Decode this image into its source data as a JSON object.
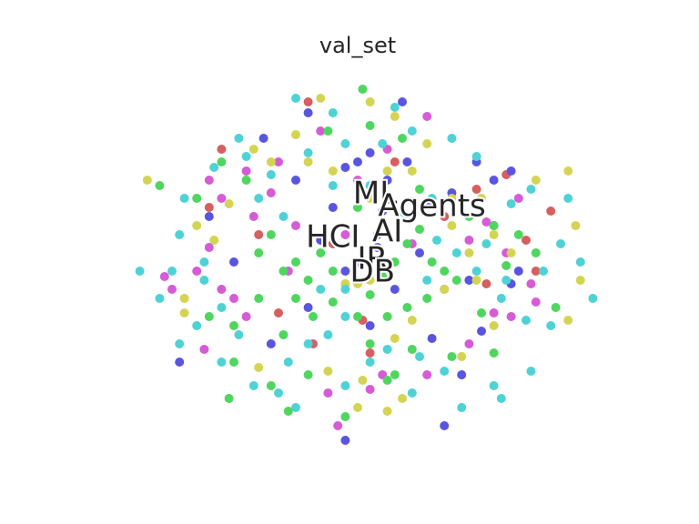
{
  "chart_data": {
    "type": "scatter",
    "title": "val_set",
    "xlabel": "",
    "ylabel": "",
    "grid": false,
    "axes_visible": false,
    "xlim": [
      -1.0,
      1.0
    ],
    "ylim": [
      -1.0,
      1.0
    ],
    "series": [
      {
        "name": "",
        "color": "#d65f5f",
        "points": [
          [
            -0.55,
            0.62
          ],
          [
            -0.4,
            0.15
          ],
          [
            -0.2,
            0.88
          ],
          [
            -0.1,
            0.1
          ],
          [
            0.02,
            -0.32
          ],
          [
            -0.18,
            -0.45
          ],
          [
            0.15,
            0.55
          ],
          [
            0.35,
            0.25
          ],
          [
            0.48,
            0.4
          ],
          [
            0.6,
            0.48
          ],
          [
            0.72,
            -0.05
          ],
          [
            0.52,
            -0.12
          ],
          [
            -0.32,
            -0.28
          ],
          [
            0.05,
            -0.5
          ],
          [
            -0.6,
            0.3
          ],
          [
            0.78,
            0.28
          ],
          [
            0.68,
            0.12
          ]
        ]
      },
      {
        "name": "",
        "color": "#5a55e0",
        "points": [
          [
            -0.38,
            0.68
          ],
          [
            -0.2,
            0.82
          ],
          [
            -0.05,
            0.52
          ],
          [
            0.0,
            0.55
          ],
          [
            0.05,
            0.6
          ],
          [
            0.12,
            0.45
          ],
          [
            0.2,
            0.55
          ],
          [
            -0.25,
            0.45
          ],
          [
            -0.1,
            0.3
          ],
          [
            0.1,
            0.28
          ],
          [
            0.28,
            0.32
          ],
          [
            0.38,
            0.38
          ],
          [
            0.55,
            0.45
          ],
          [
            0.62,
            0.5
          ],
          [
            0.25,
            0.05
          ],
          [
            0.15,
            -0.15
          ],
          [
            -0.05,
            -0.05
          ],
          [
            0.08,
            0.15
          ],
          [
            -0.15,
            0.12
          ],
          [
            0.45,
            -0.1
          ],
          [
            0.62,
            -0.12
          ],
          [
            -0.5,
            0.0
          ],
          [
            -0.2,
            -0.25
          ],
          [
            0.05,
            -0.35
          ],
          [
            0.3,
            -0.42
          ],
          [
            0.5,
            -0.38
          ],
          [
            -0.35,
            -0.45
          ],
          [
            0.42,
            -0.62
          ],
          [
            0.35,
            -0.9
          ],
          [
            -0.05,
            -0.98
          ],
          [
            0.18,
            0.88
          ],
          [
            -0.6,
            0.25
          ],
          [
            -0.72,
            -0.55
          ],
          [
            0.65,
            -0.05
          ],
          [
            0.55,
            0.2
          ],
          [
            0.0,
            0.0
          ],
          [
            0.08,
            0.08
          ],
          [
            0.48,
            0.55
          ]
        ]
      },
      {
        "name": "",
        "color": "#d65bd6",
        "points": [
          [
            -0.6,
            0.45
          ],
          [
            -0.55,
            0.35
          ],
          [
            -0.45,
            0.5
          ],
          [
            -0.35,
            0.38
          ],
          [
            -0.25,
            0.2
          ],
          [
            -0.6,
            0.08
          ],
          [
            -0.65,
            -0.05
          ],
          [
            -0.55,
            -0.15
          ],
          [
            -0.45,
            -0.3
          ],
          [
            -0.62,
            -0.48
          ],
          [
            -0.28,
            -0.05
          ],
          [
            0.0,
            0.45
          ],
          [
            0.12,
            0.62
          ],
          [
            0.28,
            0.8
          ],
          [
            0.45,
            0.12
          ],
          [
            0.52,
            0.22
          ],
          [
            0.6,
            0.05
          ],
          [
            0.7,
            -0.12
          ],
          [
            0.55,
            -0.28
          ],
          [
            0.62,
            -0.3
          ],
          [
            0.28,
            -0.62
          ],
          [
            0.05,
            -0.7
          ],
          [
            -0.12,
            -0.72
          ],
          [
            -0.08,
            -0.9
          ],
          [
            -0.15,
            0.72
          ],
          [
            -0.32,
            0.55
          ],
          [
            -0.42,
            0.25
          ],
          [
            0.22,
            0.1
          ],
          [
            0.35,
            -0.15
          ],
          [
            -0.05,
            0.15
          ],
          [
            0.45,
            -0.45
          ],
          [
            -0.75,
            -0.15
          ],
          [
            -0.78,
            -0.08
          ],
          [
            -0.5,
            -0.2
          ],
          [
            0.72,
            -0.22
          ],
          [
            0.65,
            0.35
          ],
          [
            0.1,
            -0.62
          ]
        ]
      },
      {
        "name": "",
        "color": "#4fd65f",
        "points": [
          [
            -0.8,
            0.42
          ],
          [
            -0.55,
            0.55
          ],
          [
            -0.45,
            0.45
          ],
          [
            -0.4,
            0.05
          ],
          [
            -0.35,
            0.15
          ],
          [
            -0.3,
            -0.05
          ],
          [
            -0.25,
            0.0
          ],
          [
            -0.2,
            -0.1
          ],
          [
            -0.15,
            0.05
          ],
          [
            -0.1,
            -0.05
          ],
          [
            -0.05,
            -0.12
          ],
          [
            0.05,
            -0.18
          ],
          [
            0.1,
            -0.08
          ],
          [
            0.15,
            0.0
          ],
          [
            0.2,
            0.1
          ],
          [
            0.25,
            0.18
          ],
          [
            0.3,
            0.0
          ],
          [
            0.35,
            -0.05
          ],
          [
            0.4,
            -0.1
          ],
          [
            -0.25,
            -0.2
          ],
          [
            -0.18,
            -0.3
          ],
          [
            -0.1,
            -0.22
          ],
          [
            0.0,
            -0.3
          ],
          [
            0.12,
            -0.3
          ],
          [
            0.2,
            -0.25
          ],
          [
            0.28,
            -0.2
          ],
          [
            -0.4,
            -0.2
          ],
          [
            -0.5,
            -0.35
          ],
          [
            -0.3,
            -0.4
          ],
          [
            0.05,
            -0.45
          ],
          [
            0.22,
            -0.48
          ],
          [
            0.38,
            -0.52
          ],
          [
            0.15,
            -0.62
          ],
          [
            -0.2,
            -0.62
          ],
          [
            -0.35,
            -0.68
          ],
          [
            -0.5,
            -0.55
          ],
          [
            -0.52,
            -0.75
          ],
          [
            -0.28,
            -0.82
          ],
          [
            -0.05,
            -0.85
          ],
          [
            0.12,
            -0.65
          ],
          [
            0.02,
            0.95
          ],
          [
            0.05,
            0.75
          ],
          [
            0.18,
            0.68
          ],
          [
            -0.12,
            0.72
          ],
          [
            0.55,
            0.2
          ],
          [
            0.6,
            -0.02
          ],
          [
            0.5,
            -0.28
          ],
          [
            0.65,
            0.15
          ],
          [
            0.72,
            0.05
          ],
          [
            0.55,
            -0.5
          ],
          [
            0.8,
            -0.25
          ],
          [
            -0.65,
            0.35
          ],
          [
            0.25,
            0.4
          ],
          [
            0.0,
            0.3
          ],
          [
            -0.6,
            -0.3
          ],
          [
            0.45,
            0.25
          ]
        ]
      },
      {
        "name": "",
        "color": "#d4d453",
        "points": [
          [
            -0.42,
            0.62
          ],
          [
            -0.25,
            0.7
          ],
          [
            -0.15,
            0.9
          ],
          [
            0.05,
            0.88
          ],
          [
            0.15,
            0.8
          ],
          [
            0.28,
            0.65
          ],
          [
            0.22,
            0.5
          ],
          [
            0.12,
            0.5
          ],
          [
            0.05,
            0.35
          ],
          [
            -0.1,
            0.5
          ],
          [
            -0.2,
            0.55
          ],
          [
            -0.35,
            0.55
          ],
          [
            -0.52,
            0.32
          ],
          [
            -0.58,
            0.12
          ],
          [
            -0.7,
            -0.2
          ],
          [
            -0.65,
            0.2
          ],
          [
            0.38,
            0.35
          ],
          [
            0.5,
            0.35
          ],
          [
            0.55,
            0.15
          ],
          [
            0.62,
            0.05
          ],
          [
            0.48,
            -0.1
          ],
          [
            0.35,
            -0.15
          ],
          [
            0.22,
            -0.32
          ],
          [
            0.15,
            -0.42
          ],
          [
            0.05,
            -0.1
          ],
          [
            -0.05,
            -0.12
          ],
          [
            0.02,
            -0.65
          ],
          [
            -0.12,
            -0.6
          ],
          [
            0.0,
            -0.8
          ],
          [
            0.12,
            -0.82
          ],
          [
            0.18,
            -0.75
          ],
          [
            0.42,
            -0.52
          ],
          [
            0.55,
            -0.35
          ],
          [
            0.72,
            0.45
          ],
          [
            0.85,
            0.5
          ],
          [
            0.88,
            0.2
          ],
          [
            0.9,
            -0.1
          ],
          [
            0.85,
            -0.32
          ],
          [
            -0.85,
            0.45
          ],
          [
            -0.7,
            -0.28
          ],
          [
            -0.4,
            -0.58
          ],
          [
            0.0,
            -0.12
          ],
          [
            0.38,
            0.2
          ],
          [
            0.45,
            0.05
          ]
        ]
      },
      {
        "name": "",
        "color": "#4fd2d6",
        "points": [
          [
            -0.25,
            0.9
          ],
          [
            -0.1,
            0.82
          ],
          [
            0.15,
            0.85
          ],
          [
            0.22,
            0.72
          ],
          [
            0.38,
            0.68
          ],
          [
            -0.48,
            0.68
          ],
          [
            -0.45,
            0.58
          ],
          [
            -0.58,
            0.52
          ],
          [
            -0.7,
            0.35
          ],
          [
            -0.72,
            0.15
          ],
          [
            -0.75,
            -0.05
          ],
          [
            -0.88,
            -0.05
          ],
          [
            -0.62,
            -0.1
          ],
          [
            -0.55,
            -0.25
          ],
          [
            -0.48,
            -0.4
          ],
          [
            -0.65,
            -0.35
          ],
          [
            -0.72,
            -0.45
          ],
          [
            -0.4,
            0.35
          ],
          [
            -0.3,
            0.25
          ],
          [
            -0.1,
            0.42
          ],
          [
            0.05,
            0.42
          ],
          [
            0.18,
            0.25
          ],
          [
            0.32,
            0.12
          ],
          [
            0.48,
            -0.05
          ],
          [
            0.58,
            -0.2
          ],
          [
            0.68,
            -0.32
          ],
          [
            0.75,
            -0.05
          ],
          [
            0.82,
            0.1
          ],
          [
            0.9,
            0.0
          ],
          [
            0.95,
            -0.2
          ],
          [
            0.78,
            -0.35
          ],
          [
            0.55,
            -0.68
          ],
          [
            0.58,
            -0.75
          ],
          [
            0.42,
            -0.8
          ],
          [
            0.25,
            -0.52
          ],
          [
            0.12,
            -0.48
          ],
          [
            0.05,
            -0.55
          ],
          [
            -0.05,
            -0.3
          ],
          [
            -0.12,
            -0.4
          ],
          [
            -0.2,
            -0.45
          ],
          [
            -0.28,
            -0.55
          ],
          [
            -0.42,
            -0.68
          ],
          [
            -0.32,
            -0.72
          ],
          [
            -0.25,
            -0.8
          ],
          [
            -0.05,
            -0.68
          ],
          [
            0.22,
            -0.72
          ],
          [
            0.35,
            -0.6
          ],
          [
            0.48,
            0.58
          ],
          [
            0.7,
            0.4
          ],
          [
            0.85,
            0.35
          ],
          [
            0.62,
            0.32
          ],
          [
            -0.05,
            -0.15
          ],
          [
            -0.15,
            -0.15
          ],
          [
            0.28,
            -0.1
          ],
          [
            0.4,
            0.05
          ],
          [
            0.3,
            0.35
          ],
          [
            0.1,
            0.65
          ],
          [
            -0.05,
            0.65
          ],
          [
            -0.2,
            0.6
          ],
          [
            -0.35,
            0.48
          ],
          [
            -0.62,
            0.0
          ],
          [
            -0.8,
            -0.2
          ],
          [
            -0.55,
            -0.55
          ],
          [
            0.7,
            -0.6
          ],
          [
            0.6,
            -0.1
          ],
          [
            0.52,
            0.1
          ]
        ]
      }
    ],
    "annotations": [
      {
        "text": "ML",
        "x": 0.07,
        "y": 0.37
      },
      {
        "text": "Agents",
        "x": 0.3,
        "y": 0.3
      },
      {
        "text": "HCI",
        "x": -0.1,
        "y": 0.13
      },
      {
        "text": "AI",
        "x": 0.12,
        "y": 0.16
      },
      {
        "text": "IR",
        "x": 0.06,
        "y": 0.01
      },
      {
        "text": "DB",
        "x": 0.06,
        "y": -0.06
      }
    ]
  }
}
